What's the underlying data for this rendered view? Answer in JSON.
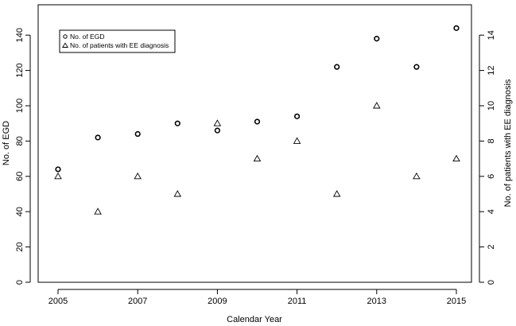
{
  "chart_data": {
    "type": "scatter",
    "xlabel": "Calendar Year",
    "ylabel_left": "No. of EGD",
    "ylabel_right": "No. of patients with EE diagnosis",
    "xlim": [
      2005,
      2015
    ],
    "x_ticks": [
      2005,
      2007,
      2009,
      2011,
      2013,
      2015
    ],
    "ylim_left": [
      0,
      150
    ],
    "y_ticks_left": [
      0,
      20,
      40,
      60,
      80,
      100,
      120,
      140
    ],
    "ylim_right": [
      0,
      15
    ],
    "y_ticks_right": [
      0,
      2,
      4,
      6,
      8,
      10,
      12,
      14
    ],
    "grid": false,
    "legend_position": "top-left",
    "series": [
      {
        "name": "No. of EGD",
        "marker": "circle",
        "axis": "left",
        "x": [
          2005,
          2006,
          2007,
          2008,
          2009,
          2010,
          2011,
          2012,
          2013,
          2014,
          2015
        ],
        "y": [
          64,
          82,
          84,
          90,
          86,
          91,
          94,
          122,
          138,
          122,
          144
        ]
      },
      {
        "name": "No. of patients with EE diagnosis",
        "marker": "triangle",
        "axis": "right",
        "x": [
          2005,
          2006,
          2007,
          2008,
          2009,
          2010,
          2011,
          2012,
          2013,
          2014,
          2015
        ],
        "y": [
          6,
          4,
          6,
          5,
          9,
          7,
          8,
          5,
          10,
          6,
          7
        ]
      }
    ]
  }
}
